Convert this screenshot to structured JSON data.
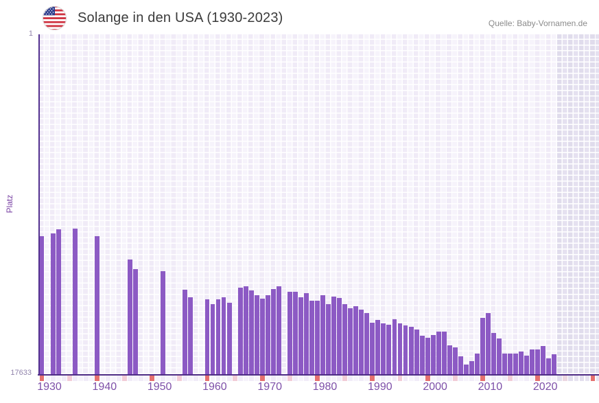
{
  "header": {
    "title": "Solange in den USA (1930-2023)",
    "source": "Quelle: Baby-Vornamen.de",
    "flag_icon": "us-flag-icon"
  },
  "axes": {
    "y_label": "Platz",
    "y_top_tick": "1",
    "y_bottom_tick": "17633",
    "x_tick_labels": [
      "1930",
      "1940",
      "1950",
      "1960",
      "1970",
      "1980",
      "1990",
      "2000",
      "2010",
      "2020"
    ]
  },
  "colors": {
    "bar": "#8c5ac4",
    "axis_line": "#53308f",
    "decade_cell": "#e5706f",
    "half_decade_cell": "#f2ccd7",
    "half_decade_cell_future": "#ecd7e1",
    "strip_cell_even": "#f1ecf8",
    "strip_cell_odd": "#f6f3fb",
    "strip_cell_future_even": "#e2deee",
    "strip_cell_future_odd": "#e7e3f1",
    "tick_label": "#9083ab",
    "x_label": "#7d4fa8"
  },
  "chart_data": {
    "type": "bar",
    "title": "Solange in den USA (1930-2023)",
    "xlabel": "",
    "ylabel": "Platz",
    "y_axis": {
      "min": 1,
      "max": 17633,
      "inverted": true,
      "note": "rank 1 at top, bars rise from bottom toward better rank"
    },
    "x_axis": {
      "first_year": 1930,
      "last_data_year": 2023,
      "axis_end_year": 2031,
      "future_zone_start": 2024,
      "decade_ticks_red": true,
      "half_decade_ticks_pink": true
    },
    "legend": "none",
    "points": [
      {
        "year": 1930,
        "rank": 10470
      },
      {
        "year": 1932,
        "rank": 10330
      },
      {
        "year": 1933,
        "rank": 10120
      },
      {
        "year": 1936,
        "rank": 10080
      },
      {
        "year": 1940,
        "rank": 10470
      },
      {
        "year": 1946,
        "rank": 11680
      },
      {
        "year": 1947,
        "rank": 12180
      },
      {
        "year": 1952,
        "rank": 12290
      },
      {
        "year": 1956,
        "rank": 13250
      },
      {
        "year": 1957,
        "rank": 13640
      },
      {
        "year": 1960,
        "rank": 13750
      },
      {
        "year": 1961,
        "rank": 14000
      },
      {
        "year": 1962,
        "rank": 13750
      },
      {
        "year": 1963,
        "rank": 13640
      },
      {
        "year": 1964,
        "rank": 13930
      },
      {
        "year": 1966,
        "rank": 13150
      },
      {
        "year": 1967,
        "rank": 13070
      },
      {
        "year": 1968,
        "rank": 13290
      },
      {
        "year": 1969,
        "rank": 13540
      },
      {
        "year": 1970,
        "rank": 13720
      },
      {
        "year": 1971,
        "rank": 13540
      },
      {
        "year": 1972,
        "rank": 13220
      },
      {
        "year": 1973,
        "rank": 13070
      },
      {
        "year": 1975,
        "rank": 13360
      },
      {
        "year": 1976,
        "rank": 13360
      },
      {
        "year": 1977,
        "rank": 13640
      },
      {
        "year": 1978,
        "rank": 13430
      },
      {
        "year": 1979,
        "rank": 13820
      },
      {
        "year": 1980,
        "rank": 13820
      },
      {
        "year": 1981,
        "rank": 13540
      },
      {
        "year": 1982,
        "rank": 14000
      },
      {
        "year": 1983,
        "rank": 13610
      },
      {
        "year": 1984,
        "rank": 13680
      },
      {
        "year": 1985,
        "rank": 14000
      },
      {
        "year": 1986,
        "rank": 14210
      },
      {
        "year": 1987,
        "rank": 14110
      },
      {
        "year": 1988,
        "rank": 14280
      },
      {
        "year": 1989,
        "rank": 14460
      },
      {
        "year": 1990,
        "rank": 14960
      },
      {
        "year": 1991,
        "rank": 14820
      },
      {
        "year": 1992,
        "rank": 15000
      },
      {
        "year": 1993,
        "rank": 15070
      },
      {
        "year": 1994,
        "rank": 14780
      },
      {
        "year": 1995,
        "rank": 15000
      },
      {
        "year": 1996,
        "rank": 15100
      },
      {
        "year": 1997,
        "rank": 15170
      },
      {
        "year": 1998,
        "rank": 15320
      },
      {
        "year": 1999,
        "rank": 15640
      },
      {
        "year": 2000,
        "rank": 15740
      },
      {
        "year": 2001,
        "rank": 15600
      },
      {
        "year": 2002,
        "rank": 15420
      },
      {
        "year": 2003,
        "rank": 15420
      },
      {
        "year": 2004,
        "rank": 16130
      },
      {
        "year": 2005,
        "rank": 16240
      },
      {
        "year": 2006,
        "rank": 16700
      },
      {
        "year": 2007,
        "rank": 17130
      },
      {
        "year": 2008,
        "rank": 16950
      },
      {
        "year": 2009,
        "rank": 16560
      },
      {
        "year": 2010,
        "rank": 14710
      },
      {
        "year": 2011,
        "rank": 14460
      },
      {
        "year": 2012,
        "rank": 15490
      },
      {
        "year": 2013,
        "rank": 15780
      },
      {
        "year": 2014,
        "rank": 16560
      },
      {
        "year": 2015,
        "rank": 16560
      },
      {
        "year": 2016,
        "rank": 16560
      },
      {
        "year": 2017,
        "rank": 16450
      },
      {
        "year": 2018,
        "rank": 16670
      },
      {
        "year": 2019,
        "rank": 16350
      },
      {
        "year": 2020,
        "rank": 16350
      },
      {
        "year": 2021,
        "rank": 16170
      },
      {
        "year": 2022,
        "rank": 16810
      },
      {
        "year": 2023,
        "rank": 16600
      }
    ]
  }
}
